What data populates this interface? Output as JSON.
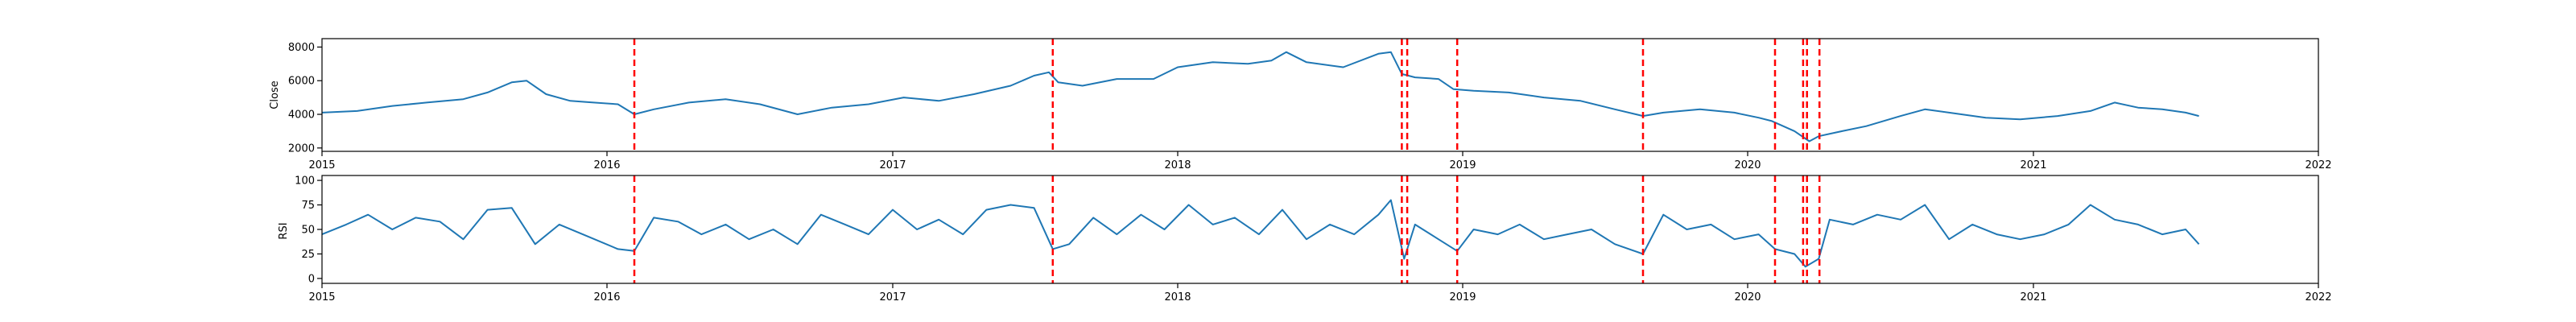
{
  "chart_data": [
    {
      "type": "line",
      "ylabel": "Close",
      "xlabel": "",
      "title": "",
      "xlim": [
        "2015-01-01",
        "2022-01-01"
      ],
      "ylim": [
        1800,
        8500
      ],
      "xticks": [
        "2015",
        "2016",
        "2017",
        "2018",
        "2019",
        "2020",
        "2021",
        "2022"
      ],
      "yticks": [
        2000,
        4000,
        6000,
        8000
      ],
      "grid": false,
      "line_color": "#1f77b4",
      "marker_line_color": "#ff0000",
      "series": [
        {
          "points": [
            [
              "2015-01-01",
              4100
            ],
            [
              "2015-02-15",
              4200
            ],
            [
              "2015-04-01",
              4500
            ],
            [
              "2015-05-15",
              4700
            ],
            [
              "2015-07-01",
              4900
            ],
            [
              "2015-08-01",
              5300
            ],
            [
              "2015-09-01",
              5900
            ],
            [
              "2015-09-20",
              6000
            ],
            [
              "2015-10-15",
              5200
            ],
            [
              "2015-11-15",
              4800
            ],
            [
              "2015-12-15",
              4700
            ],
            [
              "2016-01-15",
              4600
            ],
            [
              "2016-02-05",
              4000
            ],
            [
              "2016-03-01",
              4300
            ],
            [
              "2016-04-15",
              4700
            ],
            [
              "2016-06-01",
              4900
            ],
            [
              "2016-07-15",
              4600
            ],
            [
              "2016-09-01",
              4000
            ],
            [
              "2016-10-15",
              4400
            ],
            [
              "2016-12-01",
              4600
            ],
            [
              "2017-01-15",
              5000
            ],
            [
              "2017-03-01",
              4800
            ],
            [
              "2017-04-15",
              5200
            ],
            [
              "2017-06-01",
              5700
            ],
            [
              "2017-07-01",
              6300
            ],
            [
              "2017-07-20",
              6500
            ],
            [
              "2017-08-01",
              5900
            ],
            [
              "2017-09-01",
              5700
            ],
            [
              "2017-10-15",
              6100
            ],
            [
              "2017-12-01",
              6100
            ],
            [
              "2018-01-01",
              6800
            ],
            [
              "2018-02-15",
              7100
            ],
            [
              "2018-04-01",
              7000
            ],
            [
              "2018-05-01",
              7200
            ],
            [
              "2018-05-20",
              7700
            ],
            [
              "2018-06-15",
              7100
            ],
            [
              "2018-08-01",
              6800
            ],
            [
              "2018-09-15",
              7600
            ],
            [
              "2018-10-01",
              7700
            ],
            [
              "2018-10-15",
              6400
            ],
            [
              "2018-11-01",
              6200
            ],
            [
              "2018-12-01",
              6100
            ],
            [
              "2018-12-20",
              5500
            ],
            [
              "2019-01-15",
              5400
            ],
            [
              "2019-03-01",
              5300
            ],
            [
              "2019-04-15",
              5000
            ],
            [
              "2019-06-01",
              4800
            ],
            [
              "2019-07-15",
              4300
            ],
            [
              "2019-08-20",
              3900
            ],
            [
              "2019-09-15",
              4100
            ],
            [
              "2019-11-01",
              4300
            ],
            [
              "2019-12-15",
              4100
            ],
            [
              "2020-01-15",
              3800
            ],
            [
              "2020-02-01",
              3600
            ],
            [
              "2020-03-01",
              3000
            ],
            [
              "2020-03-20",
              2400
            ],
            [
              "2020-04-01",
              2700
            ],
            [
              "2020-05-01",
              3000
            ],
            [
              "2020-06-01",
              3300
            ],
            [
              "2020-07-15",
              3900
            ],
            [
              "2020-08-15",
              4300
            ],
            [
              "2020-09-15",
              4100
            ],
            [
              "2020-11-01",
              3800
            ],
            [
              "2020-12-15",
              3700
            ],
            [
              "2021-02-01",
              3900
            ],
            [
              "2021-03-15",
              4200
            ],
            [
              "2021-04-15",
              4700
            ],
            [
              "2021-05-15",
              4400
            ],
            [
              "2021-06-15",
              4300
            ],
            [
              "2021-07-15",
              4100
            ],
            [
              "2021-08-01",
              3900
            ]
          ]
        }
      ],
      "event_lines": [
        "2016-02-05",
        "2017-07-25",
        "2018-10-15",
        "2018-10-22",
        "2018-12-25",
        "2019-08-20",
        "2020-02-05",
        "2020-03-12",
        "2020-03-17",
        "2020-04-02"
      ]
    },
    {
      "type": "line",
      "ylabel": "RSI",
      "xlabel": "",
      "title": "",
      "xlim": [
        "2015-01-01",
        "2022-01-01"
      ],
      "ylim": [
        -5,
        105
      ],
      "xticks": [
        "2015",
        "2016",
        "2017",
        "2018",
        "2019",
        "2020",
        "2021",
        "2022"
      ],
      "yticks": [
        0,
        25,
        50,
        75,
        100
      ],
      "grid": false,
      "line_color": "#1f77b4",
      "marker_line_color": "#ff0000",
      "series": [
        {
          "points": [
            [
              "2015-01-01",
              45
            ],
            [
              "2015-02-01",
              55
            ],
            [
              "2015-03-01",
              65
            ],
            [
              "2015-04-01",
              50
            ],
            [
              "2015-05-01",
              62
            ],
            [
              "2015-06-01",
              58
            ],
            [
              "2015-07-01",
              40
            ],
            [
              "2015-08-01",
              70
            ],
            [
              "2015-09-01",
              72
            ],
            [
              "2015-10-01",
              35
            ],
            [
              "2015-11-01",
              55
            ],
            [
              "2015-12-01",
              45
            ],
            [
              "2016-01-15",
              30
            ],
            [
              "2016-02-05",
              28
            ],
            [
              "2016-03-01",
              62
            ],
            [
              "2016-04-01",
              58
            ],
            [
              "2016-05-01",
              45
            ],
            [
              "2016-06-01",
              55
            ],
            [
              "2016-07-01",
              40
            ],
            [
              "2016-08-01",
              50
            ],
            [
              "2016-09-01",
              35
            ],
            [
              "2016-10-01",
              65
            ],
            [
              "2016-11-01",
              55
            ],
            [
              "2016-12-01",
              45
            ],
            [
              "2017-01-01",
              70
            ],
            [
              "2017-02-01",
              50
            ],
            [
              "2017-03-01",
              60
            ],
            [
              "2017-04-01",
              45
            ],
            [
              "2017-05-01",
              70
            ],
            [
              "2017-06-01",
              75
            ],
            [
              "2017-07-01",
              72
            ],
            [
              "2017-07-25",
              30
            ],
            [
              "2017-08-15",
              35
            ],
            [
              "2017-09-15",
              62
            ],
            [
              "2017-10-15",
              45
            ],
            [
              "2017-11-15",
              65
            ],
            [
              "2017-12-15",
              50
            ],
            [
              "2018-01-15",
              75
            ],
            [
              "2018-02-15",
              55
            ],
            [
              "2018-03-15",
              62
            ],
            [
              "2018-04-15",
              45
            ],
            [
              "2018-05-15",
              70
            ],
            [
              "2018-06-15",
              40
            ],
            [
              "2018-07-15",
              55
            ],
            [
              "2018-08-15",
              45
            ],
            [
              "2018-09-15",
              65
            ],
            [
              "2018-10-01",
              80
            ],
            [
              "2018-10-18",
              20
            ],
            [
              "2018-11-01",
              55
            ],
            [
              "2018-12-01",
              40
            ],
            [
              "2018-12-25",
              28
            ],
            [
              "2019-01-15",
              50
            ],
            [
              "2019-02-15",
              45
            ],
            [
              "2019-03-15",
              55
            ],
            [
              "2019-04-15",
              40
            ],
            [
              "2019-05-15",
              45
            ],
            [
              "2019-06-15",
              50
            ],
            [
              "2019-07-15",
              35
            ],
            [
              "2019-08-20",
              25
            ],
            [
              "2019-09-15",
              65
            ],
            [
              "2019-10-15",
              50
            ],
            [
              "2019-11-15",
              55
            ],
            [
              "2019-12-15",
              40
            ],
            [
              "2020-01-15",
              45
            ],
            [
              "2020-02-05",
              30
            ],
            [
              "2020-03-01",
              25
            ],
            [
              "2020-03-15",
              12
            ],
            [
              "2020-04-01",
              20
            ],
            [
              "2020-04-15",
              60
            ],
            [
              "2020-05-15",
              55
            ],
            [
              "2020-06-15",
              65
            ],
            [
              "2020-07-15",
              60
            ],
            [
              "2020-08-15",
              75
            ],
            [
              "2020-09-15",
              40
            ],
            [
              "2020-10-15",
              55
            ],
            [
              "2020-11-15",
              45
            ],
            [
              "2020-12-15",
              40
            ],
            [
              "2021-01-15",
              45
            ],
            [
              "2021-02-15",
              55
            ],
            [
              "2021-03-15",
              75
            ],
            [
              "2021-04-15",
              60
            ],
            [
              "2021-05-15",
              55
            ],
            [
              "2021-06-15",
              45
            ],
            [
              "2021-07-15",
              50
            ],
            [
              "2021-08-01",
              35
            ]
          ]
        }
      ],
      "event_lines": [
        "2016-02-05",
        "2017-07-25",
        "2018-10-15",
        "2018-10-22",
        "2018-12-25",
        "2019-08-20",
        "2020-02-05",
        "2020-03-12",
        "2020-03-17",
        "2020-04-02"
      ]
    }
  ]
}
